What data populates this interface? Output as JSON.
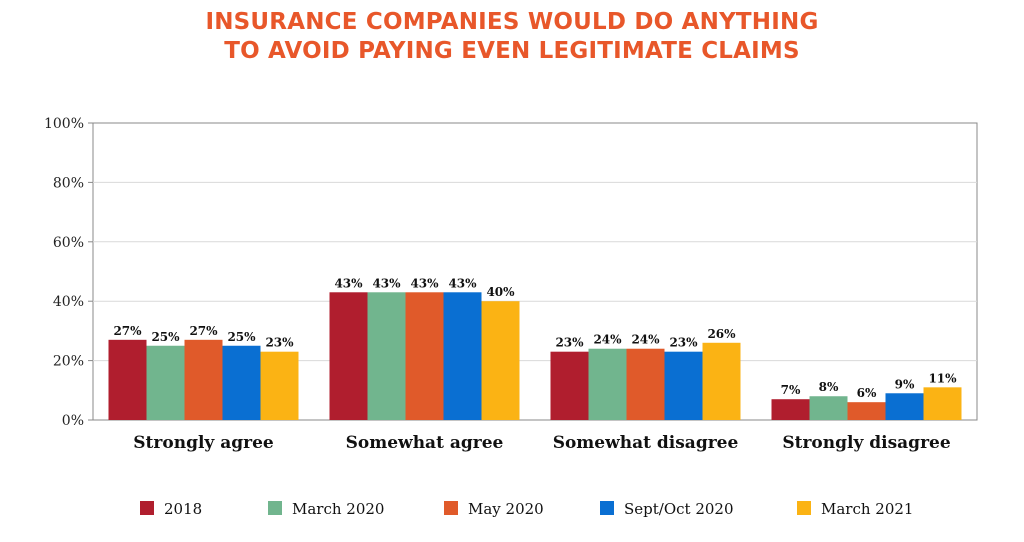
{
  "colors": {
    "title": "#e8572a",
    "series": [
      "#b01e2e",
      "#71b58e",
      "#e05a2a",
      "#0a6fd2",
      "#fbb314"
    ],
    "grid": "#d9d9d9",
    "axis": "#888888"
  },
  "chart_data": {
    "type": "bar",
    "title_lines": [
      "INSURANCE COMPANIES WOULD DO ANYTHING",
      "TO AVOID PAYING EVEN LEGITIMATE CLAIMS"
    ],
    "xlabel": "",
    "ylabel": "",
    "ylim": [
      0,
      100
    ],
    "yticks": [
      "0%",
      "20%",
      "40%",
      "60%",
      "80%",
      "100%"
    ],
    "grid": true,
    "legend_position": "bottom",
    "categories": [
      "Strongly agree",
      "Somewhat agree",
      "Somewhat disagree",
      "Strongly disagree"
    ],
    "series": [
      {
        "name": "2018",
        "values": [
          27,
          43,
          23,
          7
        ],
        "labels": [
          "27%",
          "43%",
          "23%",
          "7%"
        ]
      },
      {
        "name": "March 2020",
        "values": [
          25,
          43,
          24,
          8
        ],
        "labels": [
          "25%",
          "43%",
          "24%",
          "8%"
        ]
      },
      {
        "name": "May 2020",
        "values": [
          27,
          43,
          24,
          6
        ],
        "labels": [
          "27%",
          "43%",
          "24%",
          "6%"
        ]
      },
      {
        "name": "Sept/Oct 2020",
        "values": [
          25,
          43,
          23,
          9
        ],
        "labels": [
          "25%",
          "43%",
          "23%",
          "9%"
        ]
      },
      {
        "name": "March 2021",
        "values": [
          23,
          40,
          26,
          11
        ],
        "labels": [
          "23%",
          "40%",
          "26%",
          "11%"
        ]
      }
    ]
  }
}
